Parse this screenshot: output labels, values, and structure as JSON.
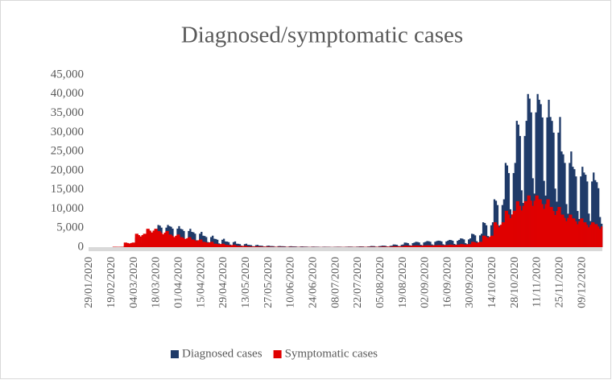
{
  "chart_data": {
    "type": "bar",
    "title": "Diagnosed/symptomatic cases",
    "categories": [
      "29/01/2020",
      null,
      null,
      null,
      null,
      null,
      null,
      null,
      null,
      null,
      null,
      null,
      null,
      null,
      "19/02/2020",
      null,
      null,
      null,
      null,
      null,
      null,
      null,
      null,
      null,
      null,
      null,
      null,
      null,
      "04/03/2020",
      null,
      null,
      null,
      null,
      null,
      null,
      null,
      null,
      null,
      null,
      null,
      null,
      null,
      "18/03/2020",
      null,
      null,
      null,
      null,
      null,
      null,
      null,
      null,
      null,
      null,
      null,
      null,
      null,
      "01/04/2020",
      null,
      null,
      null,
      null,
      null,
      null,
      null,
      null,
      null,
      null,
      null,
      null,
      null,
      "15/04/2020",
      null,
      null,
      null,
      null,
      null,
      null,
      null,
      null,
      null,
      null,
      null,
      null,
      null,
      "29/04/2020",
      null,
      null,
      null,
      null,
      null,
      null,
      null,
      null,
      null,
      null,
      null,
      null,
      null,
      "13/05/2020",
      null,
      null,
      null,
      null,
      null,
      null,
      null,
      null,
      null,
      null,
      null,
      null,
      null,
      "27/05/2020",
      null,
      null,
      null,
      null,
      null,
      null,
      null,
      null,
      null,
      null,
      null,
      null,
      null,
      "10/06/2020",
      null,
      null,
      null,
      null,
      null,
      null,
      null,
      null,
      null,
      null,
      null,
      null,
      null,
      "24/06/2020",
      null,
      null,
      null,
      null,
      null,
      null,
      null,
      null,
      null,
      null,
      null,
      null,
      null,
      "08/07/2020",
      null,
      null,
      null,
      null,
      null,
      null,
      null,
      null,
      null,
      null,
      null,
      null,
      null,
      "22/07/2020",
      null,
      null,
      null,
      null,
      null,
      null,
      null,
      null,
      null,
      null,
      null,
      null,
      null,
      "05/08/2020",
      null,
      null,
      null,
      null,
      null,
      null,
      null,
      null,
      null,
      null,
      null,
      null,
      null,
      "19/08/2020",
      null,
      null,
      null,
      null,
      null,
      null,
      null,
      null,
      null,
      null,
      null,
      null,
      null,
      "02/09/2020",
      null,
      null,
      null,
      null,
      null,
      null,
      null,
      null,
      null,
      null,
      null,
      null,
      null,
      "16/09/2020",
      null,
      null,
      null,
      null,
      null,
      null,
      null,
      null,
      null,
      null,
      null,
      null,
      null,
      "30/09/2020",
      null,
      null,
      null,
      null,
      null,
      null,
      null,
      null,
      null,
      null,
      null,
      null,
      null,
      "14/10/2020",
      null,
      null,
      null,
      null,
      null,
      null,
      null,
      null,
      null,
      null,
      null,
      null,
      null,
      "28/10/2020",
      null,
      null,
      null,
      null,
      null,
      null,
      null,
      null,
      null,
      null,
      null,
      null,
      null,
      "11/11/2020",
      null,
      null,
      null,
      null,
      null,
      null,
      null,
      null,
      null,
      null,
      null,
      null,
      null,
      "25/11/2020",
      null,
      null,
      null,
      null,
      null,
      null,
      null,
      null,
      null,
      null,
      null,
      null,
      null,
      "09/12/2020",
      null,
      null,
      null,
      null,
      null,
      null,
      null,
      null,
      null,
      null,
      null,
      null
    ],
    "series": [
      {
        "name": "Diagnosed cases",
        "color": "#1f3a68",
        "values": [
          0,
          0,
          0,
          0,
          0,
          0,
          0,
          0,
          0,
          0,
          0,
          0,
          0,
          0,
          0,
          50,
          49,
          44,
          23,
          18,
          44,
          50,
          400,
          388,
          352,
          180,
          140,
          352,
          400,
          2500,
          2425,
          2200,
          1125,
          875,
          2200,
          2500,
          4500,
          4365,
          3960,
          2025,
          1575,
          3960,
          4500,
          5800,
          5626,
          5104,
          2610,
          2030,
          5104,
          5800,
          5500,
          5335,
          4840,
          2475,
          1925,
          4840,
          5500,
          4800,
          4656,
          4224,
          2160,
          1680,
          4224,
          4800,
          4000,
          3880,
          3520,
          1800,
          1400,
          3520,
          4000,
          3000,
          2910,
          2640,
          1350,
          1050,
          2640,
          3000,
          2200,
          2134,
          1936,
          990,
          770,
          1936,
          2200,
          1500,
          1455,
          1320,
          675,
          525,
          1320,
          1500,
          900,
          873,
          792,
          405,
          315,
          792,
          900,
          600,
          582,
          528,
          270,
          210,
          528,
          600,
          400,
          388,
          352,
          180,
          140,
          352,
          400,
          300,
          291,
          264,
          135,
          105,
          264,
          300,
          250,
          243,
          220,
          113,
          88,
          220,
          250,
          200,
          194,
          176,
          90,
          70,
          176,
          200,
          150,
          146,
          132,
          68,
          53,
          132,
          150,
          120,
          116,
          106,
          54,
          42,
          106,
          120,
          100,
          97,
          88,
          45,
          35,
          88,
          100,
          120,
          116,
          106,
          54,
          42,
          106,
          120,
          150,
          146,
          132,
          68,
          53,
          132,
          150,
          200,
          194,
          176,
          90,
          70,
          176,
          200,
          300,
          291,
          264,
          135,
          105,
          264,
          300,
          400,
          388,
          352,
          180,
          140,
          352,
          400,
          700,
          679,
          616,
          315,
          245,
          616,
          700,
          1200,
          1164,
          1056,
          540,
          420,
          1056,
          1200,
          1400,
          1358,
          1232,
          630,
          490,
          1232,
          1400,
          1600,
          1552,
          1408,
          720,
          560,
          1408,
          1600,
          1700,
          1649,
          1496,
          765,
          595,
          1496,
          1700,
          1900,
          1843,
          1672,
          855,
          665,
          1672,
          1900,
          2300,
          2231,
          2024,
          1035,
          805,
          2024,
          2300,
          3500,
          3395,
          3080,
          1575,
          1225,
          3080,
          3500,
          6500,
          6305,
          5720,
          2925,
          2275,
          5720,
          6500,
          12500,
          12125,
          11000,
          5625,
          4375,
          11000,
          12500,
          22000,
          21340,
          19360,
          9900,
          7700,
          19360,
          22000,
          33000,
          32010,
          29040,
          14850,
          11550,
          29040,
          33000,
          40000,
          38800,
          35200,
          18000,
          14000,
          35200,
          40000,
          38500,
          37345,
          33880,
          17325,
          13475,
          33880,
          38500,
          34000,
          32980,
          29920,
          15300,
          11900,
          29920,
          34000,
          25000,
          24250,
          22000,
          11250,
          8750,
          22000,
          25000,
          21000,
          20370,
          18480,
          9450,
          7350,
          18480,
          21000,
          19500,
          18915,
          17160,
          8775,
          6825,
          17160,
          19500,
          17500,
          16975,
          15400,
          7875,
          6125
        ]
      },
      {
        "name": "Symptomatic cases",
        "color": "#e00000",
        "values": [
          0,
          0,
          0,
          0,
          0,
          0,
          0,
          0,
          0,
          0,
          0,
          0,
          0,
          0,
          0,
          100,
          100,
          90,
          80,
          90,
          100,
          100,
          1200,
          1200,
          1080,
          960,
          1080,
          1200,
          1200,
          3500,
          3500,
          3150,
          2800,
          3150,
          3500,
          3500,
          4800,
          4800,
          4320,
          3840,
          4320,
          4800,
          4800,
          4200,
          4200,
          3780,
          3360,
          3780,
          4200,
          4200,
          3300,
          3300,
          2970,
          2640,
          2970,
          3300,
          3300,
          2600,
          2600,
          2340,
          2080,
          2340,
          2600,
          2600,
          2000,
          2000,
          1800,
          1600,
          1800,
          2000,
          2000,
          1400,
          1400,
          1260,
          1120,
          1260,
          1400,
          1400,
          900,
          900,
          810,
          720,
          810,
          900,
          900,
          600,
          600,
          540,
          480,
          540,
          600,
          600,
          350,
          350,
          315,
          280,
          315,
          350,
          350,
          200,
          200,
          180,
          160,
          180,
          200,
          200,
          150,
          150,
          135,
          120,
          135,
          150,
          150,
          100,
          100,
          90,
          80,
          90,
          100,
          100,
          80,
          80,
          72,
          64,
          72,
          80,
          80,
          60,
          60,
          54,
          48,
          54,
          60,
          60,
          50,
          50,
          45,
          40,
          45,
          50,
          50,
          40,
          40,
          36,
          32,
          36,
          40,
          40,
          40,
          40,
          36,
          32,
          36,
          40,
          40,
          50,
          50,
          45,
          40,
          45,
          50,
          50,
          60,
          60,
          54,
          48,
          54,
          60,
          60,
          80,
          80,
          72,
          64,
          72,
          80,
          80,
          100,
          100,
          90,
          80,
          90,
          100,
          100,
          150,
          150,
          135,
          120,
          135,
          150,
          150,
          250,
          250,
          225,
          200,
          225,
          250,
          250,
          400,
          400,
          360,
          320,
          360,
          400,
          400,
          450,
          450,
          405,
          360,
          405,
          450,
          450,
          500,
          500,
          450,
          400,
          450,
          500,
          500,
          550,
          550,
          495,
          440,
          495,
          550,
          550,
          650,
          650,
          585,
          520,
          585,
          650,
          650,
          800,
          800,
          720,
          640,
          720,
          800,
          800,
          1400,
          1400,
          1260,
          1120,
          1260,
          1400,
          1400,
          3000,
          3000,
          2700,
          2400,
          2700,
          3000,
          3000,
          6500,
          6500,
          5850,
          5200,
          5850,
          6500,
          6500,
          9500,
          9500,
          8550,
          7600,
          8550,
          9500,
          9500,
          12000,
          12000,
          10800,
          9600,
          10800,
          12000,
          12000,
          13500,
          13500,
          12150,
          10800,
          12150,
          13500,
          13500,
          12500,
          12500,
          11250,
          10000,
          11250,
          12500,
          12500,
          10500,
          10500,
          9450,
          8400,
          9450,
          10500,
          10500,
          8500,
          8500,
          7650,
          6800,
          7650,
          8500,
          8500,
          7500,
          7500,
          6750,
          6000,
          6750,
          7500,
          7500,
          6500,
          6500,
          5850,
          5200,
          5850,
          6500,
          6500,
          6000,
          6000,
          5400,
          4800,
          5400
        ]
      }
    ],
    "ylim": [
      0,
      45000
    ],
    "yticks": [
      0,
      {
        "value": 5000,
        "label": "5,000"
      },
      {
        "value": 10000,
        "label": "10,000"
      },
      {
        "value": 15000,
        "label": "15,000"
      },
      {
        "value": 20000,
        "label": "20,000"
      },
      {
        "value": 25000,
        "label": "25,000"
      },
      {
        "value": 30000,
        "label": "30,000"
      },
      {
        "value": 35000,
        "label": "35,000"
      },
      {
        "value": 40000,
        "label": "40,000"
      },
      {
        "value": 45000,
        "label": "45,000"
      }
    ],
    "grid": false,
    "legend": "bottom"
  }
}
